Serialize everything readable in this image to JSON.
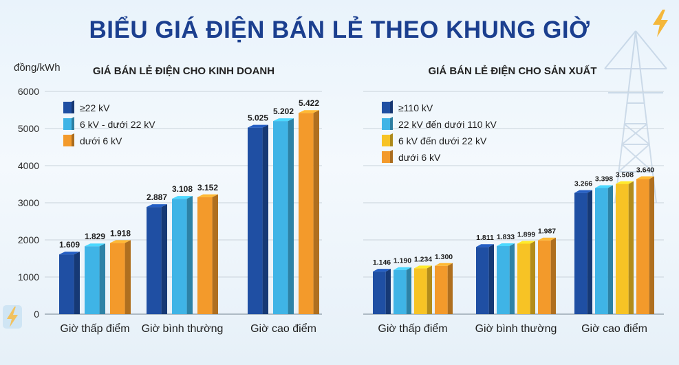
{
  "header": {
    "title": "BIỂU GIÁ ĐIỆN BÁN LẺ THEO KHUNG GIỜ",
    "unit": "đồng/kWh"
  },
  "colors": {
    "dark_blue": "#1f4fa3",
    "light_blue": "#3fb4e6",
    "yellow": "#f7c325",
    "orange": "#f39a2b",
    "title_blue": "#1b3f8f"
  },
  "icons": [
    "lightning-bolt-icon",
    "power-tower-icon"
  ],
  "chart_data": [
    {
      "type": "bar",
      "title": "GIÁ BÁN LẺ ĐIỆN CHO KINH DOANH",
      "ylabel": "đồng/kWh",
      "ylim": [
        0,
        6000
      ],
      "yticks": [
        "0",
        "1000",
        "2000",
        "3000",
        "4000",
        "5000",
        "6000"
      ],
      "grid": true,
      "legend_position": "top-left",
      "categories": [
        "Giờ thấp điểm",
        "Giờ bình thường",
        "Giờ cao điểm"
      ],
      "series": [
        {
          "name": "≥22 kV",
          "color": "#1f4fa3",
          "values": [
            1609,
            2887,
            5025
          ],
          "labels": [
            "1.609",
            "2.887",
            "5.025"
          ]
        },
        {
          "name": "6 kV - dưới 22 kV",
          "color": "#3fb4e6",
          "values": [
            1829,
            3108,
            5202
          ],
          "labels": [
            "1.829",
            "3.108",
            "5.202"
          ]
        },
        {
          "name": "dưới 6 kV",
          "color": "#f39a2b",
          "values": [
            1918,
            3152,
            5422
          ],
          "labels": [
            "1.918",
            "3.152",
            "5.422"
          ]
        }
      ]
    },
    {
      "type": "bar",
      "title": "GIÁ BÁN LẺ ĐIỆN CHO SẢN XUẤT",
      "ylabel": "đồng/kWh",
      "ylim": [
        0,
        6000
      ],
      "grid": true,
      "legend_position": "top-left",
      "categories": [
        "Giờ thấp điểm",
        "Giờ bình thường",
        "Giờ cao điểm"
      ],
      "series": [
        {
          "name": "≥110 kV",
          "color": "#1f4fa3",
          "values": [
            1146,
            1811,
            3266
          ],
          "labels": [
            "1.146",
            "1.811",
            "3.266"
          ]
        },
        {
          "name": "22 kV đến dưới 110 kV",
          "color": "#3fb4e6",
          "values": [
            1190,
            1833,
            3398
          ],
          "labels": [
            "1.190",
            "1.833",
            "3.398"
          ]
        },
        {
          "name": "6 kV đến dưới 22 kV",
          "color": "#f7c325",
          "values": [
            1234,
            1899,
            3508
          ],
          "labels": [
            "1.234",
            "1.899",
            "3.508"
          ]
        },
        {
          "name": "dưới 6 kV",
          "color": "#f39a2b",
          "values": [
            1300,
            1987,
            3640
          ],
          "labels": [
            "1.300",
            "1.987",
            "3.640"
          ]
        }
      ]
    }
  ]
}
